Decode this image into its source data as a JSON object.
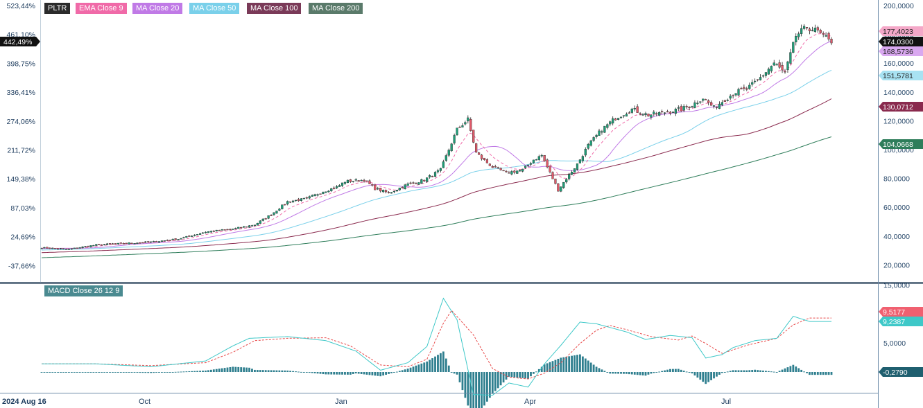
{
  "legend": {
    "symbol": "PLTR",
    "ema9": "EMA Close 9",
    "ma20": "MA Close 20",
    "ma50": "MA Close 50",
    "ma100": "MA Close 100",
    "ma200": "MA Close 200",
    "macd": "MACD Close 26 12 9"
  },
  "colors": {
    "up": "#1f9e78",
    "down": "#e25a6a",
    "ema9": "#f06aa8",
    "ma20": "#c07ae6",
    "ma50": "#7ad0ea",
    "ma100": "#8a2a4e",
    "ma200": "#2e7d5a",
    "macd_line": "#3ec8c8",
    "signal_line": "#e84a4a",
    "histogram": "#2f7f8f",
    "symbol_bg": "#2b2b2b",
    "ema_bg": "#f06aa8",
    "ma20_bg": "#c07ae6",
    "ma50_bg": "#7ad0ea",
    "ma100_bg": "#7a3a58",
    "ma200_bg": "#5a7a6a",
    "macd_bg": "#4a8a90"
  },
  "chart_data": [
    {
      "type": "candlestick",
      "series_names": [
        "PLTR",
        "EMA Close 9",
        "MA Close 20",
        "MA Close 50",
        "MA Close 100",
        "MA Close 200"
      ],
      "left_axis_ticks": [
        "523,44%",
        "461,10%",
        "398,75%",
        "336,41%",
        "274,06%",
        "211,72%",
        "149,38%",
        "87,03%",
        "24,69%",
        "-37,66%"
      ],
      "right_axis_ticks": [
        "200,0000",
        "180,0000",
        "160,0000",
        "140,0000",
        "120,0000",
        "100,0000",
        "80,0000",
        "60,0000",
        "40,0000",
        "20,0000"
      ],
      "ylim": [
        10,
        205
      ],
      "x_labels": [
        "2024 Aug 16",
        "Oct",
        "Jan",
        "Apr",
        "Jul"
      ],
      "current_percent_tag": "442,49%",
      "price_tags": [
        "177,4023",
        "174,0300",
        "168,5736",
        "151,5781",
        "130,0712",
        "104,0668"
      ],
      "price_tag_values": [
        177.4023,
        174.03,
        168.5736,
        151.5781,
        130.0712,
        104.0668
      ],
      "anchors": [
        [
          0,
          32
        ],
        [
          10,
          31
        ],
        [
          20,
          34
        ],
        [
          30,
          35
        ],
        [
          40,
          36
        ],
        [
          50,
          38
        ],
        [
          60,
          43
        ],
        [
          70,
          45
        ],
        [
          78,
          48
        ],
        [
          84,
          55
        ],
        [
          90,
          64
        ],
        [
          97,
          66
        ],
        [
          103,
          71
        ],
        [
          108,
          74
        ],
        [
          111,
          78
        ],
        [
          118,
          79
        ],
        [
          122,
          73
        ],
        [
          127,
          70
        ],
        [
          134,
          76
        ],
        [
          140,
          79
        ],
        [
          146,
          86
        ],
        [
          152,
          114
        ],
        [
          156,
          121
        ],
        [
          157,
          113
        ],
        [
          159,
          98
        ],
        [
          161,
          94
        ],
        [
          165,
          88
        ],
        [
          170,
          84
        ],
        [
          176,
          86
        ],
        [
          180,
          93
        ],
        [
          183,
          96
        ],
        [
          186,
          84
        ],
        [
          189,
          72
        ],
        [
          192,
          80
        ],
        [
          196,
          90
        ],
        [
          200,
          103
        ],
        [
          205,
          114
        ],
        [
          210,
          122
        ],
        [
          216,
          128
        ],
        [
          222,
          124
        ],
        [
          228,
          126
        ],
        [
          234,
          128
        ],
        [
          238,
          131
        ],
        [
          242,
          136
        ],
        [
          246,
          129
        ],
        [
          250,
          135
        ],
        [
          254,
          140
        ],
        [
          258,
          142
        ],
        [
          262,
          148
        ],
        [
          268,
          160
        ],
        [
          272,
          153
        ],
        [
          276,
          179
        ],
        [
          280,
          185
        ],
        [
          284,
          182
        ],
        [
          286,
          178
        ]
      ]
    },
    {
      "type": "macd",
      "series_names": [
        "MACD Close 26 12 9"
      ],
      "right_axis_ticks": [
        "15,0000",
        "10,0000",
        "5,0000"
      ],
      "ylim": [
        -4.5,
        17.5
      ],
      "value_tags": [
        "9,5177",
        "9,2387",
        "-0,2790"
      ],
      "macd_anchors": [
        [
          0,
          1.4
        ],
        [
          20,
          1.4
        ],
        [
          40,
          0.9
        ],
        [
          60,
          1.9
        ],
        [
          70,
          4.5
        ],
        [
          76,
          5.8
        ],
        [
          90,
          6.1
        ],
        [
          104,
          5.4
        ],
        [
          115,
          3.6
        ],
        [
          124,
          0.3
        ],
        [
          134,
          1.6
        ],
        [
          141,
          4.4
        ],
        [
          147,
          12.7
        ],
        [
          152,
          9.0
        ],
        [
          158,
          -3.9
        ],
        [
          165,
          -4.0
        ],
        [
          171,
          -1.9
        ],
        [
          178,
          -2.6
        ],
        [
          184,
          1.4
        ],
        [
          190,
          4.6
        ],
        [
          197,
          8.6
        ],
        [
          203,
          8.3
        ],
        [
          214,
          6.9
        ],
        [
          221,
          5.6
        ],
        [
          230,
          6.3
        ],
        [
          238,
          5.9
        ],
        [
          243,
          2.4
        ],
        [
          249,
          3.0
        ],
        [
          253,
          4.2
        ],
        [
          261,
          5.4
        ],
        [
          269,
          5.8
        ],
        [
          275,
          9.6
        ],
        [
          281,
          8.7
        ]
      ],
      "signal_anchors": [
        [
          0,
          1.4
        ],
        [
          20,
          1.4
        ],
        [
          40,
          1.1
        ],
        [
          60,
          1.6
        ],
        [
          70,
          3.4
        ],
        [
          78,
          5.4
        ],
        [
          90,
          5.8
        ],
        [
          104,
          5.9
        ],
        [
          113,
          4.5
        ],
        [
          124,
          1.2
        ],
        [
          134,
          0.9
        ],
        [
          141,
          2.2
        ],
        [
          147,
          8.4
        ],
        [
          150,
          10.6
        ],
        [
          158,
          6.4
        ],
        [
          165,
          0.6
        ],
        [
          171,
          -0.9
        ],
        [
          178,
          -1.2
        ],
        [
          184,
          -0.2
        ],
        [
          190,
          1.6
        ],
        [
          197,
          4.9
        ],
        [
          203,
          7.2
        ],
        [
          208,
          8.0
        ],
        [
          214,
          7.3
        ],
        [
          223,
          6.1
        ],
        [
          233,
          5.5
        ],
        [
          238,
          6.2
        ],
        [
          243,
          4.9
        ],
        [
          249,
          3.2
        ],
        [
          258,
          4.6
        ],
        [
          269,
          5.8
        ],
        [
          275,
          8.1
        ],
        [
          281,
          9.3
        ]
      ]
    }
  ]
}
